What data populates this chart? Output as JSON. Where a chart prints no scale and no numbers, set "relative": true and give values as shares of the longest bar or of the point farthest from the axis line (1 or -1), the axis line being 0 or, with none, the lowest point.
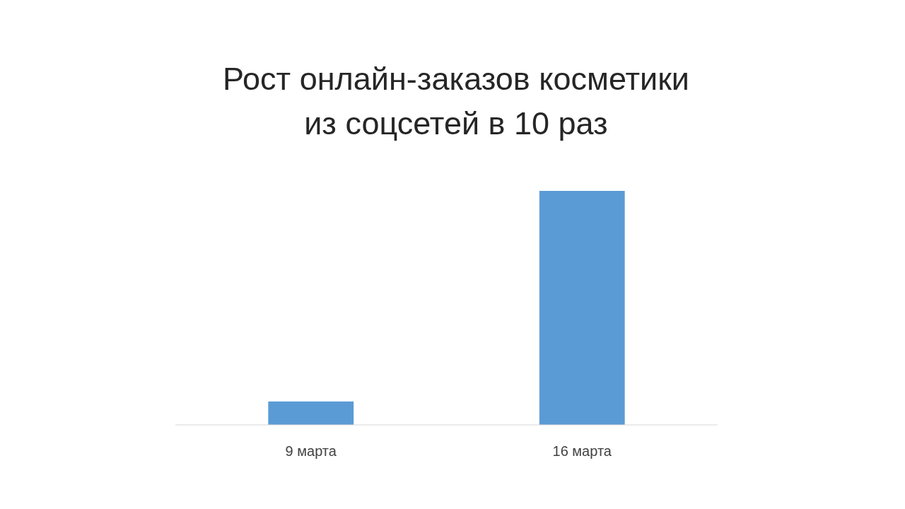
{
  "chart_data": {
    "type": "bar",
    "title": "Рост онлайн-заказов косметики\nиз соцсетей в 10 раз",
    "categories": [
      "9 марта",
      "16 марта"
    ],
    "values": [
      0.1,
      1
    ],
    "color": "#5b9bd5",
    "relative": true
  }
}
